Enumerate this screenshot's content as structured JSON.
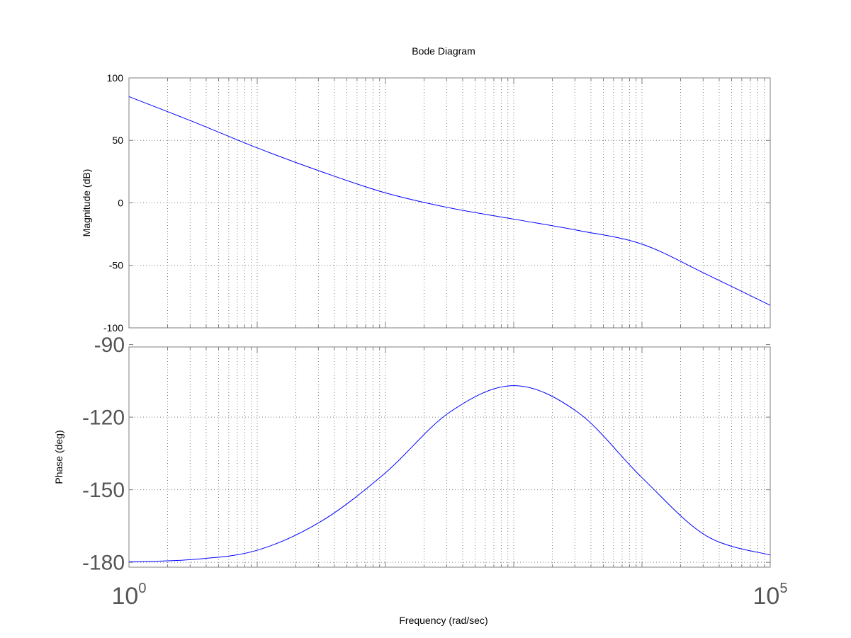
{
  "chart_data": {
    "type": "line",
    "title": "Bode Diagram",
    "xlabel": "Frequency  (rad/sec)",
    "x_scale": "log",
    "xlim": [
      1,
      100000
    ],
    "x_tick_labels": [
      {
        "base": "10",
        "exp": "0",
        "value": 1
      },
      {
        "base": "10",
        "exp": "5",
        "value": 100000
      }
    ],
    "grid": true,
    "line_color": "#0000ff",
    "axes_color": "#7f7f7f",
    "grid_color": "#7f7f7f",
    "panels": [
      {
        "name": "magnitude",
        "ylabel": "Magnitude (dB)",
        "ylim": [
          -100,
          100
        ],
        "yticks": [
          100,
          50,
          0,
          -50,
          -100
        ],
        "ytick_labels": [
          "100",
          "50",
          "0",
          "-50",
          "-100"
        ],
        "series": [
          {
            "x": [
              1,
              3.16,
              10,
              31.6,
              100,
              316,
              1000,
              3162,
              10000,
              31623,
              100000
            ],
            "y": [
              85,
              65,
              44,
              25,
              8,
              -4,
              -13,
              -22,
              -33,
              -57,
              -82
            ]
          }
        ]
      },
      {
        "name": "phase",
        "ylabel": "Phase (deg)",
        "ylim": [
          -182,
          -91
        ],
        "yticks": [
          -90,
          -120,
          -150,
          -180
        ],
        "ytick_labels": [
          "-90",
          "-120",
          "-150",
          "-180"
        ],
        "series": [
          {
            "x": [
              1,
              3.16,
              10,
              31.6,
              100,
              316,
              1000,
              3162,
              10000,
              31623,
              100000
            ],
            "y": [
              -179.8,
              -178.8,
              -175,
              -163,
              -143,
              -118,
              -107,
              -118,
              -145,
              -169,
              -177
            ]
          }
        ]
      }
    ]
  }
}
